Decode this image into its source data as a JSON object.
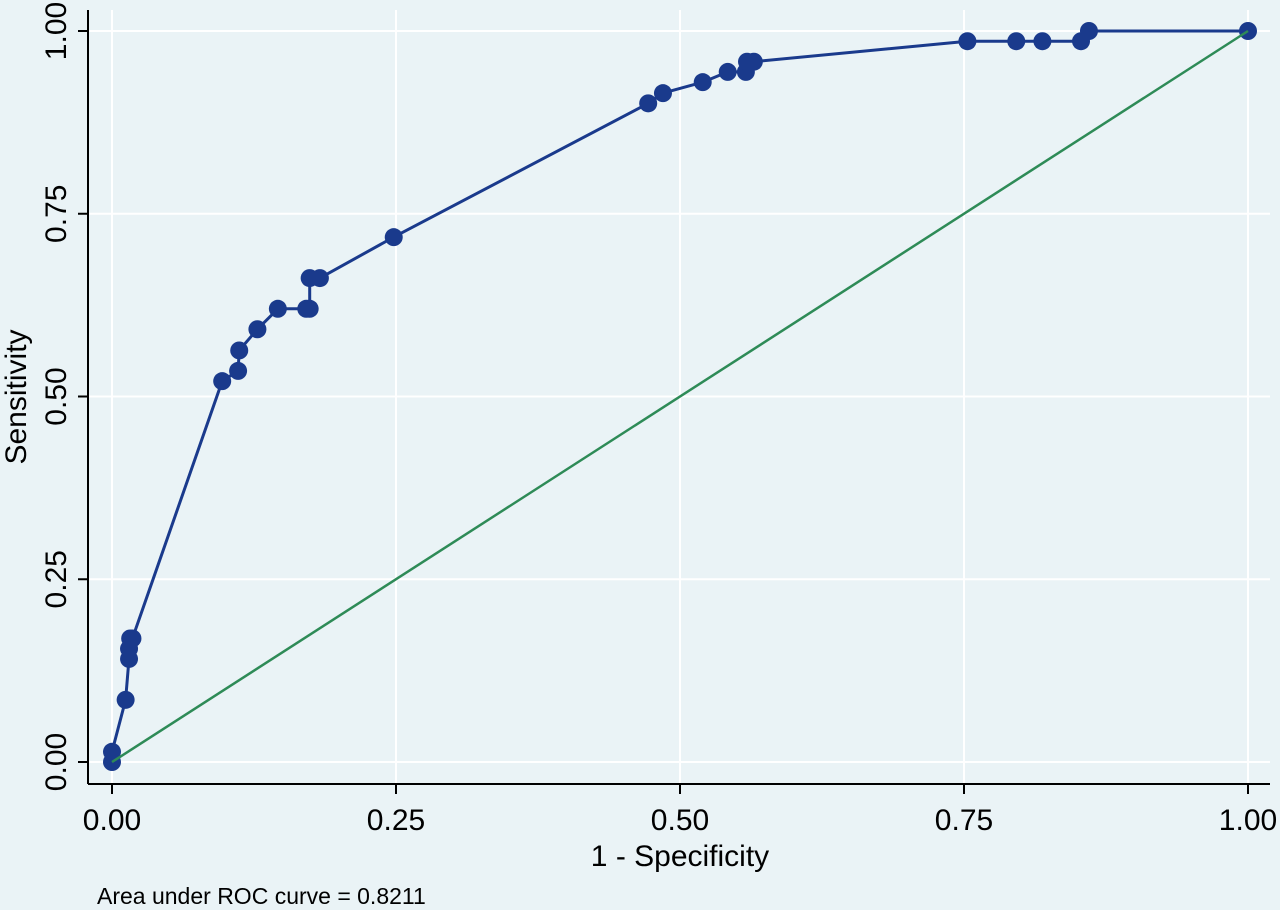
{
  "chart_data": {
    "type": "line",
    "title": "",
    "xlabel": "1 - Specificity",
    "ylabel": "Sensitivity",
    "xlim": [
      0,
      1
    ],
    "ylim": [
      0,
      1
    ],
    "x_ticks": [
      "0.00",
      "0.25",
      "0.50",
      "0.75",
      "1.00"
    ],
    "y_ticks": [
      "0.00",
      "0.25",
      "0.50",
      "0.75",
      "1.00"
    ],
    "grid": true,
    "legend": "none",
    "annotation": "Area under ROC curve = 0.8211",
    "series": [
      {
        "style": "line-with-markers",
        "color": "#1a3a8c",
        "points": [
          [
            0.0,
            0.0
          ],
          [
            0.0,
            0.014
          ],
          [
            0.012,
            0.085
          ],
          [
            0.015,
            0.141
          ],
          [
            0.015,
            0.155
          ],
          [
            0.016,
            0.169
          ],
          [
            0.018,
            0.169
          ],
          [
            0.097,
            0.521
          ],
          [
            0.111,
            0.535
          ],
          [
            0.112,
            0.563
          ],
          [
            0.128,
            0.592
          ],
          [
            0.146,
            0.62
          ],
          [
            0.171,
            0.62
          ],
          [
            0.174,
            0.62
          ],
          [
            0.174,
            0.662
          ],
          [
            0.183,
            0.662
          ],
          [
            0.248,
            0.718
          ],
          [
            0.472,
            0.901
          ],
          [
            0.485,
            0.915
          ],
          [
            0.52,
            0.93
          ],
          [
            0.542,
            0.944
          ],
          [
            0.558,
            0.944
          ],
          [
            0.559,
            0.958
          ],
          [
            0.565,
            0.958
          ],
          [
            0.753,
            0.986
          ],
          [
            0.796,
            0.986
          ],
          [
            0.819,
            0.986
          ],
          [
            0.853,
            0.986
          ],
          [
            0.86,
            1.0
          ],
          [
            1.0,
            1.0
          ]
        ]
      },
      {
        "style": "line",
        "color": "#2e8b57",
        "points": [
          [
            0,
            0
          ],
          [
            1,
            1
          ]
        ]
      }
    ]
  }
}
